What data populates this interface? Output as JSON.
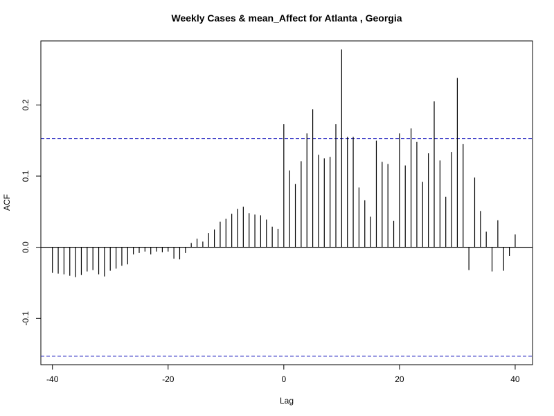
{
  "chart_data": {
    "type": "bar",
    "title": "Weekly Cases & mean_Affect for Atlanta , Georgia",
    "xlabel": "Lag",
    "ylabel": "ACF",
    "xlim": [
      -42,
      43
    ],
    "ylim": [
      -0.165,
      0.29
    ],
    "x_ticks": [
      -40,
      -20,
      0,
      20,
      40
    ],
    "x_tick_labels": [
      "-40",
      "-20",
      "0",
      "20",
      "40"
    ],
    "y_ticks": [
      -0.1,
      0.0,
      0.1,
      0.2
    ],
    "y_tick_labels": [
      "-0.1",
      "0.0",
      "0.1",
      "0.2"
    ],
    "confidence_bound": 0.153,
    "grid": false,
    "colors": {
      "bars": "#000000",
      "zero_line": "#000000",
      "confidence_lines": "#1f1fbf",
      "frame": "#000000"
    },
    "lags": [
      -40,
      -39,
      -38,
      -37,
      -36,
      -35,
      -34,
      -33,
      -32,
      -31,
      -30,
      -29,
      -28,
      -27,
      -26,
      -25,
      -24,
      -23,
      -22,
      -21,
      -20,
      -19,
      -18,
      -17,
      -16,
      -15,
      -14,
      -13,
      -12,
      -11,
      -10,
      -9,
      -8,
      -7,
      -6,
      -5,
      -4,
      -3,
      -2,
      -1,
      0,
      1,
      2,
      3,
      4,
      5,
      6,
      7,
      8,
      9,
      10,
      11,
      12,
      13,
      14,
      15,
      16,
      17,
      18,
      19,
      20,
      21,
      22,
      23,
      24,
      25,
      26,
      27,
      28,
      29,
      30,
      31,
      32,
      33,
      34,
      35,
      36,
      37,
      38,
      39,
      40
    ],
    "values": [
      -0.036,
      -0.037,
      -0.038,
      -0.04,
      -0.042,
      -0.039,
      -0.034,
      -0.032,
      -0.038,
      -0.041,
      -0.033,
      -0.03,
      -0.026,
      -0.024,
      -0.01,
      -0.008,
      -0.006,
      -0.01,
      -0.006,
      -0.007,
      -0.006,
      -0.016,
      -0.017,
      -0.008,
      0.006,
      0.012,
      0.008,
      0.02,
      0.025,
      0.036,
      0.04,
      0.047,
      0.054,
      0.057,
      0.048,
      0.046,
      0.045,
      0.039,
      0.029,
      0.026,
      0.173,
      0.108,
      0.089,
      0.121,
      0.16,
      0.194,
      0.13,
      0.125,
      0.127,
      0.173,
      0.278,
      0.155,
      0.155,
      0.084,
      0.066,
      0.043,
      0.15,
      0.12,
      0.117,
      0.037,
      0.16,
      0.115,
      0.167,
      0.148,
      0.092,
      0.132,
      0.205,
      0.122,
      0.071,
      0.134,
      0.238,
      0.145,
      -0.032,
      0.098,
      0.051,
      0.022,
      -0.034,
      0.038,
      -0.033,
      -0.012,
      0.018
    ]
  }
}
